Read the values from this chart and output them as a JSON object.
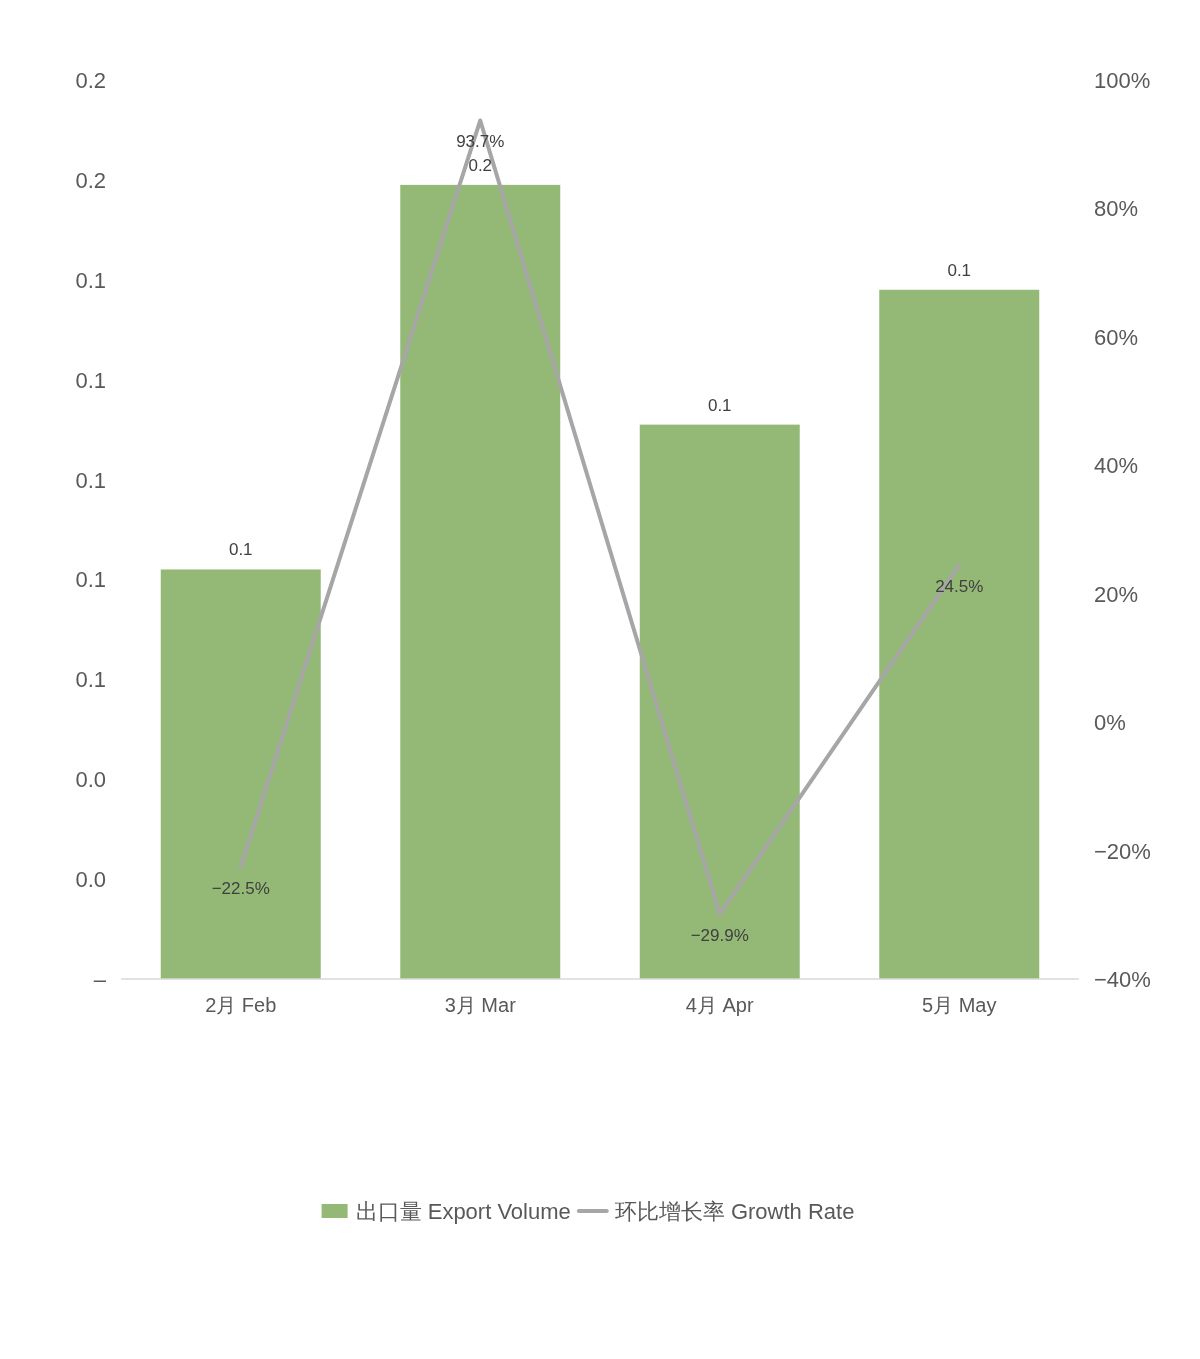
{
  "chart_data": {
    "type": "bar",
    "categories": [
      "2月 Feb",
      "3月 Mar",
      "4月 Apr",
      "5月 May"
    ],
    "series": [
      {
        "name": "出口量 Export Volume",
        "color": "#94b976",
        "values": [
          0.082,
          0.159,
          0.111,
          0.138
        ],
        "value_labels": [
          "0.1",
          "0.2",
          "0.1",
          "0.1"
        ]
      },
      {
        "name": "环比增长率 Growth Rate",
        "type": "line",
        "axis": "y2",
        "color": "#a6a6a6",
        "values": [
          -22.5,
          93.7,
          -29.9,
          24.5
        ],
        "value_labels": [
          "−22.5%",
          "93.7%",
          "−29.9%",
          "24.5%"
        ]
      }
    ],
    "ylim": [
      0,
      0.18
    ],
    "yticks": [
      {
        "value": 0,
        "label": "–"
      },
      {
        "value": 0.02,
        "label": "0.0"
      },
      {
        "value": 0.04,
        "label": "0.0"
      },
      {
        "value": 0.06,
        "label": "0.1"
      },
      {
        "value": 0.08,
        "label": "0.1"
      },
      {
        "value": 0.1,
        "label": "0.1"
      },
      {
        "value": 0.12,
        "label": "0.1"
      },
      {
        "value": 0.14,
        "label": "0.1"
      },
      {
        "value": 0.16,
        "label": "0.2"
      },
      {
        "value": 0.18,
        "label": "0.2"
      }
    ],
    "y2lim": [
      -40,
      100
    ],
    "y2ticks": [
      {
        "value": -40,
        "label": "−40%"
      },
      {
        "value": -20,
        "label": "−20%"
      },
      {
        "value": 0,
        "label": "0%"
      },
      {
        "value": 20,
        "label": "20%"
      },
      {
        "value": 40,
        "label": "40%"
      },
      {
        "value": 60,
        "label": "60%"
      },
      {
        "value": 80,
        "label": "80%"
      },
      {
        "value": 100,
        "label": "100%"
      }
    ],
    "legend": "bottom"
  }
}
